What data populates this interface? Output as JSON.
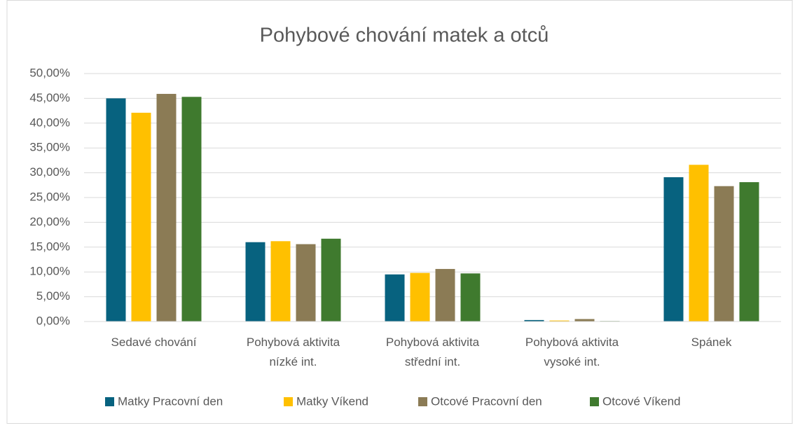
{
  "chart_data": {
    "type": "bar",
    "title": "Pohybové chování matek a otců",
    "categories": [
      "Sedavé chování",
      "Pohybová aktivita nízké int.",
      "Pohybová aktivita střední int.",
      "Pohybová aktivita vysoké int.",
      "Spánek"
    ],
    "series": [
      {
        "name": "Matky Pracovní den",
        "color": "#07627f",
        "values": [
          45.0,
          16.0,
          9.5,
          0.3,
          29.1
        ]
      },
      {
        "name": "Matky Víkend",
        "color": "#ffc000",
        "values": [
          42.1,
          16.2,
          9.8,
          0.2,
          31.6
        ]
      },
      {
        "name": "Otcové Pracovní den",
        "color": "#8b7b55",
        "values": [
          45.9,
          15.6,
          10.6,
          0.5,
          27.3
        ]
      },
      {
        "name": "Otcové Víkend",
        "color": "#3f7a2e",
        "values": [
          45.3,
          16.7,
          9.7,
          0.1,
          28.1
        ]
      }
    ],
    "ylim": [
      0,
      50
    ],
    "yticks": [
      {
        "value": 0,
        "label": "0,00%"
      },
      {
        "value": 5,
        "label": "5,00%"
      },
      {
        "value": 10,
        "label": "10,00%"
      },
      {
        "value": 15,
        "label": "15,00%"
      },
      {
        "value": 20,
        "label": "20,00%"
      },
      {
        "value": 25,
        "label": "25,00%"
      },
      {
        "value": 30,
        "label": "30,00%"
      },
      {
        "value": 35,
        "label": "35,00%"
      },
      {
        "value": 40,
        "label": "40,00%"
      },
      {
        "value": 45,
        "label": "45,00%"
      },
      {
        "value": 50,
        "label": "50,00%"
      }
    ],
    "grid": true,
    "legend": "bottom"
  }
}
